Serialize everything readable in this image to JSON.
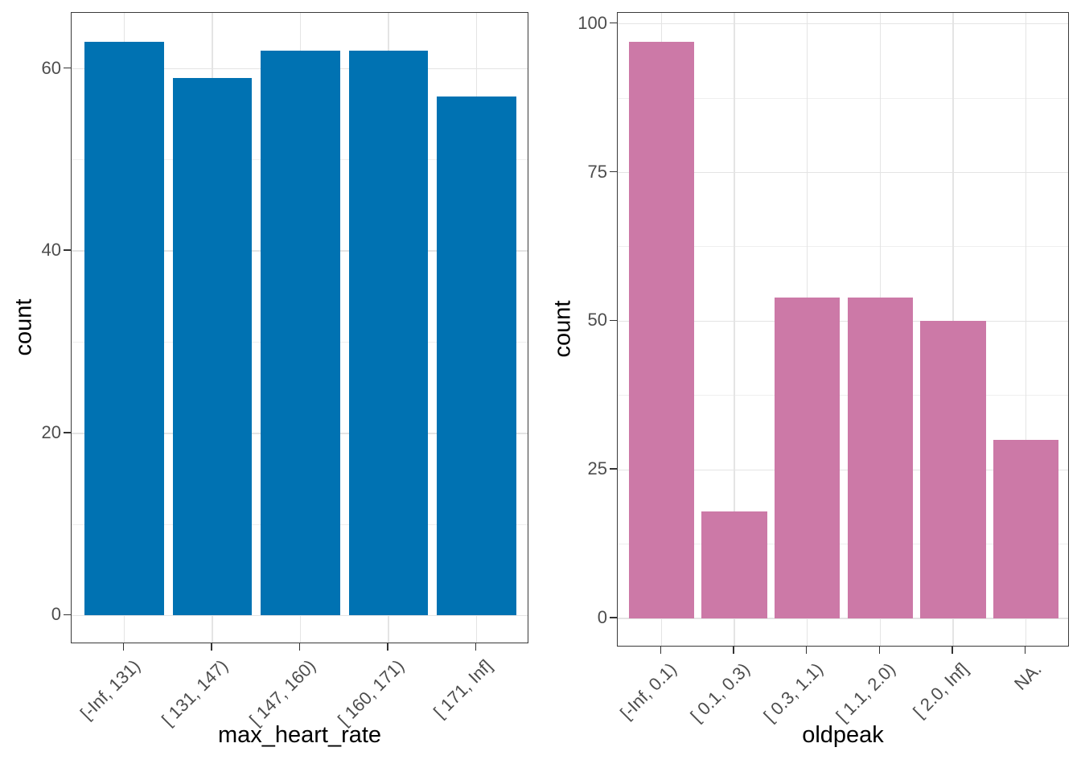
{
  "figure": {
    "background": "#FFFFFF",
    "description": "Two side-by-side bar charts of binned variables"
  },
  "style": {
    "panel_background": "#FFFFFF",
    "panel_border": "#3A3A3A",
    "grid_major": "#E4E4E4",
    "grid_minor": "#EFEFEF",
    "tick_mark": "#333333",
    "axis_text": "#4D4D4D",
    "axis_title": "#000000"
  },
  "chart_data": [
    {
      "type": "bar",
      "title": "",
      "xlabel": "max_heart_rate",
      "ylabel": "count",
      "categories": [
        "[-Inf, 131)",
        "[ 131, 147)",
        "[ 147, 160)",
        "[ 160, 171)",
        "[ 171, Inf]"
      ],
      "values": [
        63,
        59,
        62,
        62,
        57
      ],
      "bar_color": "#0072B2",
      "y_ticks": [
        0,
        20,
        40,
        60
      ],
      "y_minor": [
        10,
        30,
        50
      ],
      "ylim": [
        -3.15,
        66.15
      ],
      "bar_rel_width": 0.9,
      "grid": "major+minor",
      "legend": "none",
      "x_label_angle": 45
    },
    {
      "type": "bar",
      "title": "",
      "xlabel": "oldpeak",
      "ylabel": "count",
      "categories": [
        "[-Inf, 0.1)",
        "[ 0.1, 0.3)",
        "[ 0.3, 1.1)",
        "[ 1.1, 2.0)",
        "[ 2.0, Inf]",
        "NA."
      ],
      "values": [
        97,
        18,
        54,
        54,
        50,
        30
      ],
      "bar_color": "#CC79A7",
      "y_ticks": [
        0,
        25,
        50,
        75,
        100
      ],
      "y_minor": [
        12.5,
        37.5,
        62.5,
        87.5
      ],
      "ylim": [
        -4.85,
        101.85
      ],
      "bar_rel_width": 0.9,
      "grid": "major+minor",
      "legend": "none",
      "x_label_angle": 45
    }
  ]
}
